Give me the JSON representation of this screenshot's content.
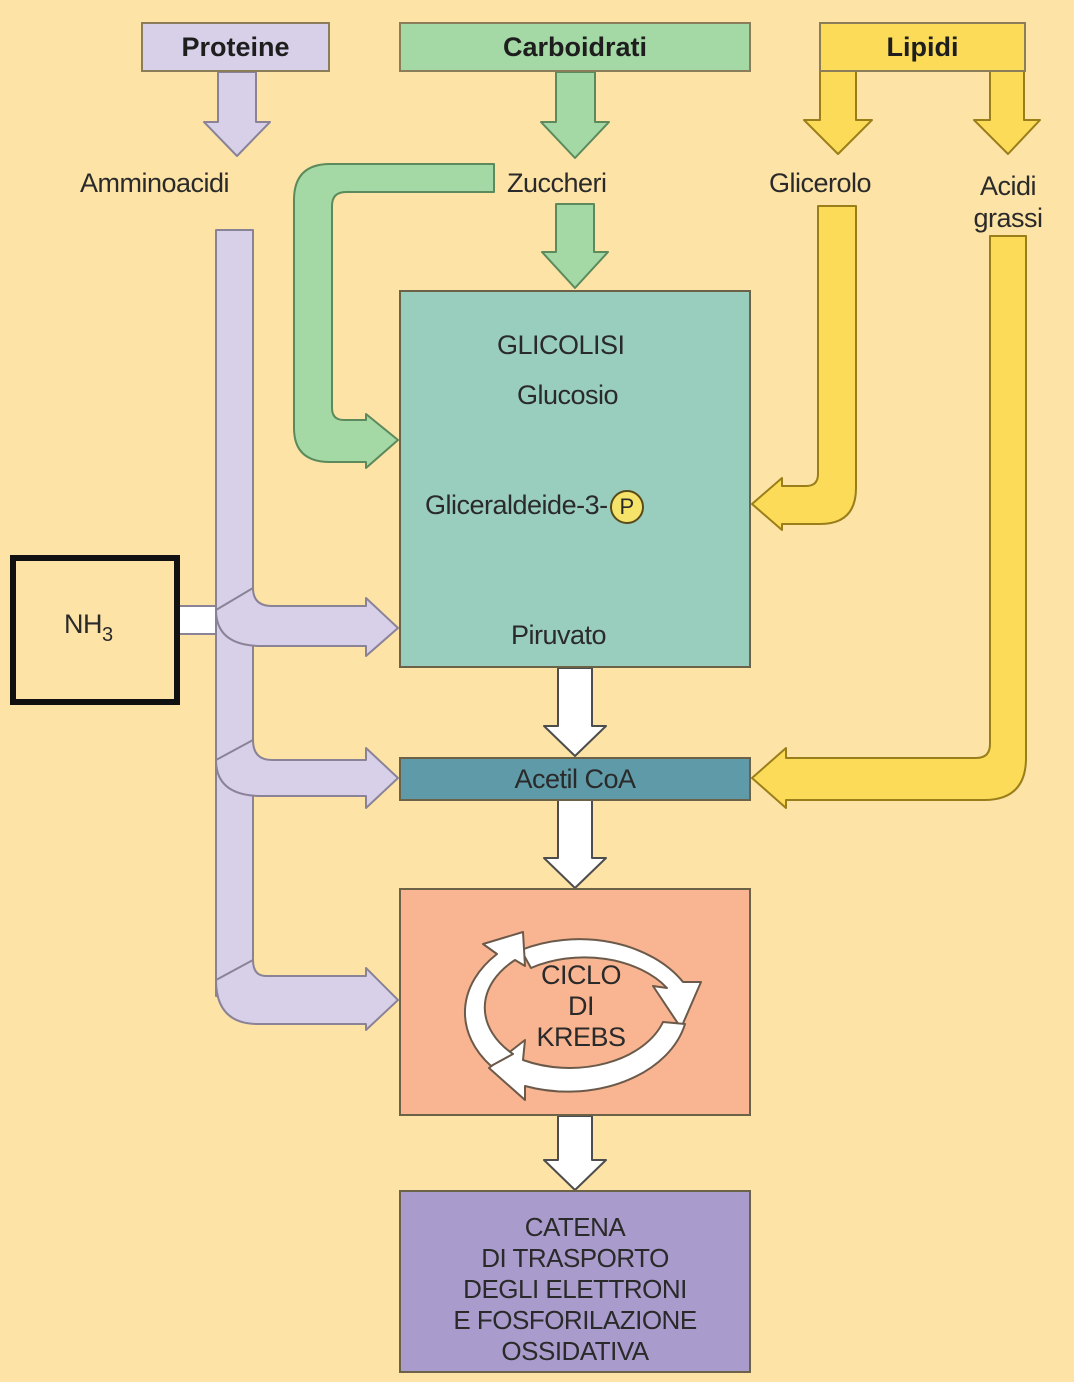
{
  "headers": {
    "proteine": "Proteine",
    "carboidrati": "Carboidrati",
    "lipidi": "Lipidi"
  },
  "labels": {
    "amminoacidi": "Amminoacidi",
    "zuccheri": "Zuccheri",
    "glicerolo": "Glicerolo",
    "acidi_line1": "Acidi",
    "acidi_line2": "grassi"
  },
  "glicolisi": {
    "title": "GLICOLISI",
    "glucosio": "Glucosio",
    "gliceraldeide": "Gliceraldeide-3-",
    "phosphate_symbol": "P",
    "piruvato": "Piruvato"
  },
  "nh3": {
    "main": "NH",
    "sub": "3"
  },
  "acetil": "Acetil CoA",
  "krebs": {
    "line1": "CICLO",
    "line2": "DI",
    "line3": "KREBS"
  },
  "catena": {
    "line1": "CATENA",
    "line2": "DI TRASPORTO",
    "line3": "DEGLI ELETTRONI",
    "line4": "E FOSFORILAZIONE",
    "line5": "OSSIDATIVA"
  },
  "colors": {
    "background": "#fde3a6",
    "protein": "#d8d0e8",
    "carbohydrate": "#a4d8a4",
    "lipid": "#fbdb57",
    "glycolysis_box": "#99cdbd",
    "acetyl_box": "#5e9aa8",
    "krebs_box": "#f9b592",
    "etc_box": "#a99bcb"
  }
}
